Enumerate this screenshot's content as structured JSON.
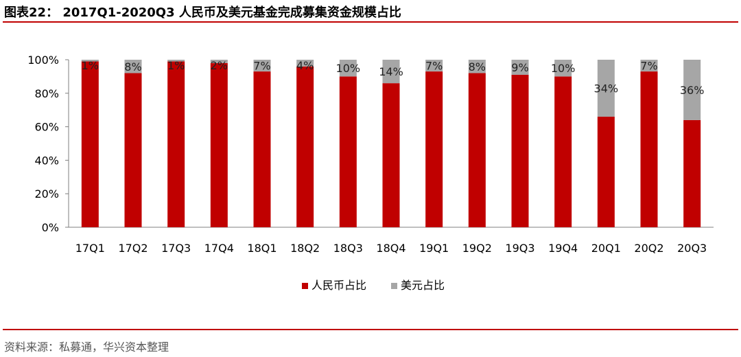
{
  "title": "图表22： 2017Q1-2020Q3 人民币及美元基金完成募集资金规模占比",
  "source": "资料来源：私募通，华兴资本整理",
  "colors": {
    "accent": "#c00000",
    "rmb": "#c00000",
    "usd": "#a6a6a6"
  },
  "chart_data": {
    "type": "bar",
    "stacked": true,
    "categories": [
      "17Q1",
      "17Q2",
      "17Q3",
      "17Q4",
      "18Q1",
      "18Q2",
      "18Q3",
      "18Q4",
      "19Q1",
      "19Q2",
      "19Q3",
      "19Q4",
      "20Q1",
      "20Q2",
      "20Q3"
    ],
    "series": [
      {
        "name": "人民币占比",
        "values": [
          99,
          92,
          99,
          98,
          93,
          96,
          90,
          86,
          93,
          92,
          91,
          90,
          66,
          93,
          64
        ]
      },
      {
        "name": "美元占比",
        "values": [
          1,
          8,
          1,
          2,
          7,
          4,
          10,
          14,
          7,
          8,
          9,
          10,
          34,
          7,
          36
        ]
      }
    ],
    "data_labels": [
      "1%",
      "8%",
      "1%",
      "2%",
      "7%",
      "4%",
      "10%",
      "14%",
      "7%",
      "8%",
      "9%",
      "10%",
      "34%",
      "7%",
      "36%"
    ],
    "yticks": [
      "0%",
      "20%",
      "40%",
      "60%",
      "80%",
      "100%"
    ],
    "ylim": [
      0,
      100
    ],
    "grid": false,
    "legend_position": "bottom"
  }
}
